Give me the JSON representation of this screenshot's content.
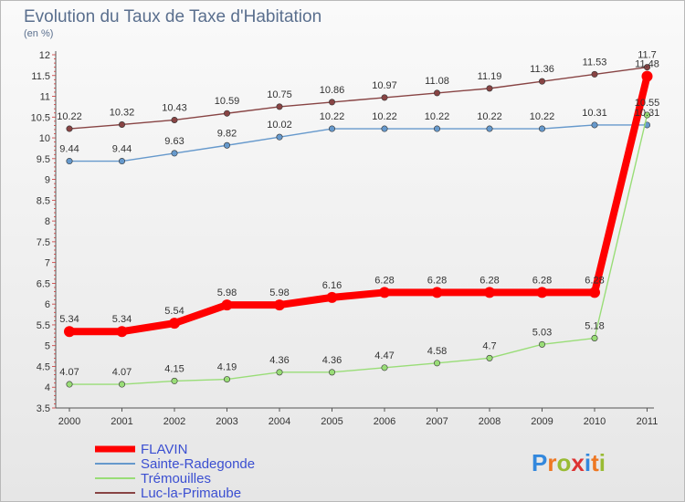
{
  "chart_data": {
    "type": "line",
    "title": "Evolution du Taux de Taxe d'Habitation",
    "subtitle": "(en %)",
    "x": [
      "2000",
      "2001",
      "2002",
      "2003",
      "2004",
      "2005",
      "2006",
      "2007",
      "2008",
      "2009",
      "2010",
      "2011"
    ],
    "ylim": [
      3.5,
      12
    ],
    "yticks": [
      "3.5",
      "4",
      "4.5",
      "5",
      "5.5",
      "6",
      "6.5",
      "7",
      "7.5",
      "8",
      "8.5",
      "9",
      "9.5",
      "10",
      "10.5",
      "11",
      "11.5",
      "12"
    ],
    "grid": false,
    "legend_position": "bottom-left",
    "series": [
      {
        "name": "FLAVIN",
        "color": "#ff0000",
        "values": [
          5.34,
          5.34,
          5.54,
          5.98,
          5.98,
          6.16,
          6.28,
          6.28,
          6.28,
          6.28,
          6.28,
          11.48
        ],
        "labels": [
          "5.34",
          "5.34",
          "5.54",
          "5.98",
          "5.98",
          "6.16",
          "6.28",
          "6.28",
          "6.28",
          "6.28",
          "6.28",
          "11.48"
        ]
      },
      {
        "name": "Sainte-Radegonde",
        "color": "#6699cc",
        "values": [
          9.44,
          9.44,
          9.63,
          9.82,
          10.02,
          10.22,
          10.22,
          10.22,
          10.22,
          10.22,
          10.31,
          10.31
        ],
        "labels": [
          "9.44",
          "9.44",
          "9.63",
          "9.82",
          "10.02",
          "10.22",
          "10.22",
          "10.22",
          "10.22",
          "10.22",
          "10.31",
          "10.31"
        ]
      },
      {
        "name": "Trémouilles",
        "color": "#99dd77",
        "values": [
          4.07,
          4.07,
          4.15,
          4.19,
          4.36,
          4.36,
          4.47,
          4.58,
          4.7,
          5.03,
          5.18,
          10.55
        ],
        "labels": [
          "4.07",
          "4.07",
          "4.15",
          "4.19",
          "4.36",
          "4.36",
          "4.47",
          "4.58",
          "4.7",
          "5.03",
          "5.18",
          "10.55"
        ]
      },
      {
        "name": "Luc-la-Primaube",
        "color": "#884444",
        "values": [
          10.22,
          10.32,
          10.43,
          10.59,
          10.75,
          10.86,
          10.97,
          11.08,
          11.19,
          11.36,
          11.53,
          11.7
        ],
        "labels": [
          "10.22",
          "10.32",
          "10.43",
          "10.59",
          "10.75",
          "10.86",
          "10.97",
          "11.08",
          "11.19",
          "11.36",
          "11.53",
          "11.7"
        ]
      }
    ]
  },
  "logo": {
    "letters": [
      "P",
      "r",
      "o",
      "x",
      "i",
      "t",
      "i"
    ],
    "colors": [
      "#3388dd",
      "#ee7722",
      "#99bb33",
      "#dd3333",
      "#3388dd",
      "#ee7722",
      "#99bb33"
    ]
  }
}
